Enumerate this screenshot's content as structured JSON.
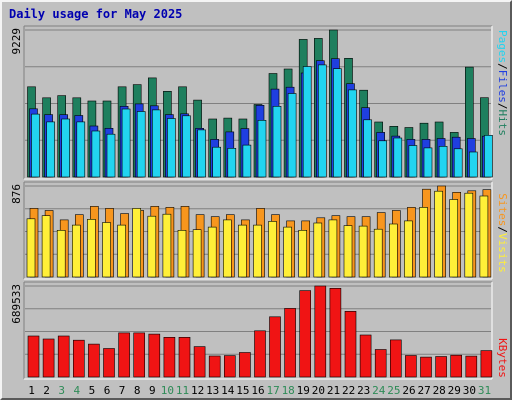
{
  "title": "Daily usage for May 2025",
  "colors": {
    "hits": "#1e7f5e",
    "files": "#1f3fe0",
    "pages": "#22d4f0",
    "visits": "#ffef38",
    "sites": "#f7961e",
    "kbytes": "#f01414",
    "weekend_label": "#2e8b57",
    "weekday_label": "#000000",
    "slash": "#000000",
    "title": "#0000b0"
  },
  "legend_top": [
    {
      "text": "Pages",
      "color": "#22d4f0"
    },
    {
      "text": "/",
      "color": "#000000"
    },
    {
      "text": "Files",
      "color": "#1f3fe0"
    },
    {
      "text": "/",
      "color": "#000000"
    },
    {
      "text": "Hits",
      "color": "#1e7f5e"
    }
  ],
  "legend_mid": [
    {
      "text": "Sites",
      "color": "#f7961e"
    },
    {
      "text": "/",
      "color": "#000000"
    },
    {
      "text": "Visits",
      "color": "#ffef38"
    }
  ],
  "legend_bottom": [
    {
      "text": "KBytes",
      "color": "#f01414"
    }
  ],
  "chart_data": {
    "type": "bar",
    "days": [
      "1",
      "2",
      "3",
      "4",
      "5",
      "6",
      "7",
      "8",
      "9",
      "10",
      "11",
      "12",
      "13",
      "14",
      "15",
      "16",
      "17",
      "18",
      "19",
      "20",
      "21",
      "22",
      "23",
      "24",
      "25",
      "26",
      "27",
      "28",
      "29",
      "30",
      "31"
    ],
    "weekend_days": [
      "3",
      "4",
      "10",
      "11",
      "17",
      "18",
      "24",
      "25",
      "31"
    ],
    "panels": [
      {
        "name": "top",
        "ymax": 9229,
        "ymax_label": "9229",
        "series": [
          {
            "name": "Hits",
            "values": [
              5660,
              4970,
              5110,
              4970,
              4770,
              4770,
              5660,
              5800,
              6220,
              5380,
              5660,
              4830,
              3640,
              3700,
              3640,
              4550,
              6500,
              6780,
              8640,
              8700,
              9229,
              7450,
              5450,
              3450,
              3180,
              3110,
              3380,
              3450,
              2800,
              6900,
              4980
            ]
          },
          {
            "name": "Files",
            "values": [
              4280,
              3920,
              3910,
              3860,
              3200,
              3060,
              4440,
              4590,
              4470,
              3920,
              3970,
              3060,
              2360,
              2830,
              3040,
              4500,
              5520,
              5640,
              6530,
              7300,
              7430,
              5860,
              4350,
              2800,
              2570,
              2360,
              2360,
              2420,
              2500,
              2420,
              2560
            ]
          },
          {
            "name": "Pages",
            "values": [
              3950,
              3460,
              3640,
              3460,
              2890,
              2690,
              4270,
              4110,
              4210,
              3670,
              3840,
              2960,
              1870,
              1800,
              2000,
              3560,
              4440,
              5240,
              6940,
              7040,
              6800,
              5470,
              3590,
              2270,
              2450,
              1980,
              1830,
              1930,
              1770,
              1570,
              2620
            ]
          }
        ]
      },
      {
        "name": "middle",
        "ymax": 876,
        "ymax_label": "876",
        "series": [
          {
            "name": "Sites",
            "values": [
              660,
              640,
              550,
              600,
              680,
              660,
              610,
              640,
              680,
              670,
              680,
              600,
              580,
              600,
              550,
              660,
              600,
              540,
              540,
              570,
              590,
              580,
              580,
              620,
              640,
              670,
              845,
              876,
              815,
              830,
              840
            ]
          },
          {
            "name": "Visits",
            "values": [
              560,
              590,
              450,
              500,
              555,
              525,
              500,
              660,
              585,
              605,
              450,
              455,
              480,
              550,
              500,
              500,
              535,
              480,
              450,
              520,
              550,
              495,
              490,
              460,
              510,
              540,
              670,
              826,
              746,
              807,
              780
            ]
          }
        ]
      },
      {
        "name": "bottom",
        "ymax": 689533,
        "ymax_label": "689533",
        "series": [
          {
            "name": "KBytes",
            "values": [
              311000,
              288000,
              311000,
              279000,
              249000,
              216000,
              334000,
              334000,
              325000,
              301000,
              301000,
              230000,
              159000,
              162000,
              186000,
              350000,
              456000,
              520000,
              655000,
              689533,
              672000,
              498000,
              318000,
              208000,
              281000,
              163000,
              151000,
              155000,
              165000,
              158000,
              200000
            ]
          }
        ]
      }
    ]
  }
}
